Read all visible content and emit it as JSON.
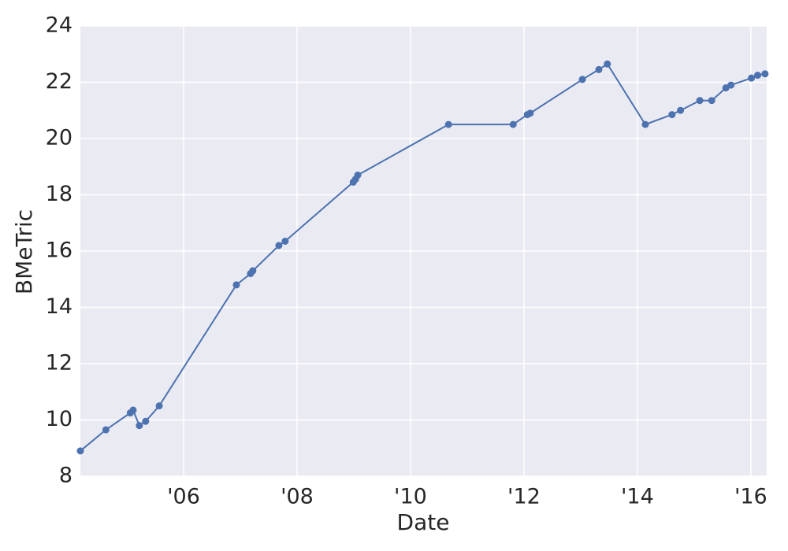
{
  "chart_data": {
    "type": "line",
    "xlabel": "Date",
    "ylabel": "BMeTric",
    "color": "#4c72b0",
    "grid": true,
    "x": [
      2004.18,
      2004.63,
      2005.06,
      2005.11,
      2005.22,
      2005.33,
      2005.57,
      2006.93,
      2007.18,
      2007.22,
      2007.68,
      2007.79,
      2008.99,
      2009.03,
      2009.07,
      2010.67,
      2011.81,
      2012.06,
      2012.11,
      2013.03,
      2013.32,
      2013.47,
      2014.14,
      2014.61,
      2014.76,
      2015.1,
      2015.31,
      2015.56,
      2015.65,
      2016.01,
      2016.12,
      2016.25
    ],
    "values": [
      8.9,
      9.65,
      10.25,
      10.35,
      9.8,
      9.95,
      10.5,
      14.8,
      15.2,
      15.3,
      16.2,
      16.35,
      18.45,
      18.55,
      18.7,
      20.5,
      20.5,
      20.85,
      20.9,
      22.1,
      22.45,
      22.65,
      20.5,
      20.85,
      21.0,
      21.35,
      21.35,
      21.8,
      21.9,
      22.15,
      22.25,
      22.3
    ],
    "xlim": [
      2004.18,
      2016.28
    ],
    "xticks": [
      {
        "value": 2006,
        "label": "'06"
      },
      {
        "value": 2008,
        "label": "'08"
      },
      {
        "value": 2010,
        "label": "'10"
      },
      {
        "value": 2012,
        "label": "'12"
      },
      {
        "value": 2014,
        "label": "'14"
      },
      {
        "value": 2016,
        "label": "'16"
      }
    ],
    "ylim": [
      8,
      24
    ],
    "yticks": [
      8,
      10,
      12,
      14,
      16,
      18,
      20,
      22,
      24
    ]
  }
}
